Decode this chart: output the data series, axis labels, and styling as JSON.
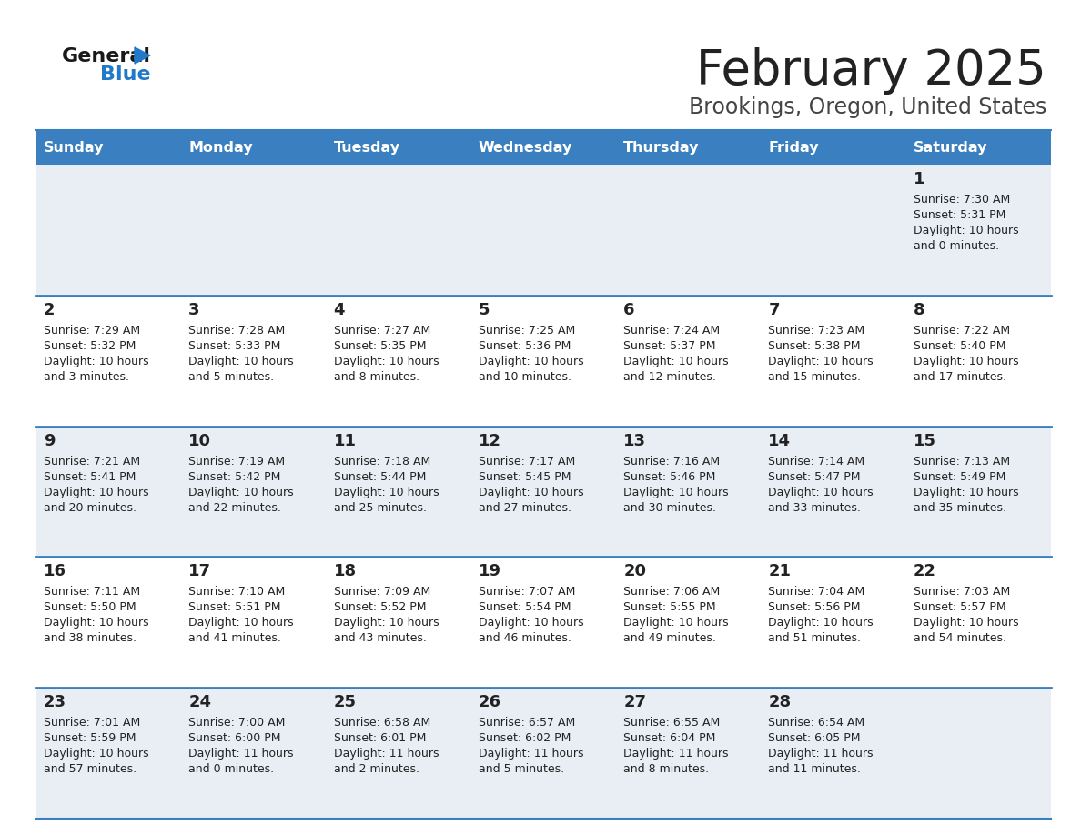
{
  "title": "February 2025",
  "subtitle": "Brookings, Oregon, United States",
  "header_color": "#3a7fbf",
  "header_text_color": "#ffffff",
  "day_names": [
    "Sunday",
    "Monday",
    "Tuesday",
    "Wednesday",
    "Thursday",
    "Friday",
    "Saturday"
  ],
  "bg_color": "#ffffff",
  "cell_bg_light": "#e8eef4",
  "cell_bg_white": "#ffffff",
  "border_color": "#3a7fbf",
  "text_color": "#222222",
  "title_color": "#222222",
  "subtitle_color": "#444444",
  "logo_general_color": "#1a1a1a",
  "logo_blue_color": "#2278c9",
  "calendar": [
    [
      null,
      null,
      null,
      null,
      null,
      null,
      {
        "day": 1,
        "sunrise": "7:30 AM",
        "sunset": "5:31 PM",
        "daylight": "10 hours\nand 0 minutes."
      }
    ],
    [
      {
        "day": 2,
        "sunrise": "7:29 AM",
        "sunset": "5:32 PM",
        "daylight": "10 hours\nand 3 minutes."
      },
      {
        "day": 3,
        "sunrise": "7:28 AM",
        "sunset": "5:33 PM",
        "daylight": "10 hours\nand 5 minutes."
      },
      {
        "day": 4,
        "sunrise": "7:27 AM",
        "sunset": "5:35 PM",
        "daylight": "10 hours\nand 8 minutes."
      },
      {
        "day": 5,
        "sunrise": "7:25 AM",
        "sunset": "5:36 PM",
        "daylight": "10 hours\nand 10 minutes."
      },
      {
        "day": 6,
        "sunrise": "7:24 AM",
        "sunset": "5:37 PM",
        "daylight": "10 hours\nand 12 minutes."
      },
      {
        "day": 7,
        "sunrise": "7:23 AM",
        "sunset": "5:38 PM",
        "daylight": "10 hours\nand 15 minutes."
      },
      {
        "day": 8,
        "sunrise": "7:22 AM",
        "sunset": "5:40 PM",
        "daylight": "10 hours\nand 17 minutes."
      }
    ],
    [
      {
        "day": 9,
        "sunrise": "7:21 AM",
        "sunset": "5:41 PM",
        "daylight": "10 hours\nand 20 minutes."
      },
      {
        "day": 10,
        "sunrise": "7:19 AM",
        "sunset": "5:42 PM",
        "daylight": "10 hours\nand 22 minutes."
      },
      {
        "day": 11,
        "sunrise": "7:18 AM",
        "sunset": "5:44 PM",
        "daylight": "10 hours\nand 25 minutes."
      },
      {
        "day": 12,
        "sunrise": "7:17 AM",
        "sunset": "5:45 PM",
        "daylight": "10 hours\nand 27 minutes."
      },
      {
        "day": 13,
        "sunrise": "7:16 AM",
        "sunset": "5:46 PM",
        "daylight": "10 hours\nand 30 minutes."
      },
      {
        "day": 14,
        "sunrise": "7:14 AM",
        "sunset": "5:47 PM",
        "daylight": "10 hours\nand 33 minutes."
      },
      {
        "day": 15,
        "sunrise": "7:13 AM",
        "sunset": "5:49 PM",
        "daylight": "10 hours\nand 35 minutes."
      }
    ],
    [
      {
        "day": 16,
        "sunrise": "7:11 AM",
        "sunset": "5:50 PM",
        "daylight": "10 hours\nand 38 minutes."
      },
      {
        "day": 17,
        "sunrise": "7:10 AM",
        "sunset": "5:51 PM",
        "daylight": "10 hours\nand 41 minutes."
      },
      {
        "day": 18,
        "sunrise": "7:09 AM",
        "sunset": "5:52 PM",
        "daylight": "10 hours\nand 43 minutes."
      },
      {
        "day": 19,
        "sunrise": "7:07 AM",
        "sunset": "5:54 PM",
        "daylight": "10 hours\nand 46 minutes."
      },
      {
        "day": 20,
        "sunrise": "7:06 AM",
        "sunset": "5:55 PM",
        "daylight": "10 hours\nand 49 minutes."
      },
      {
        "day": 21,
        "sunrise": "7:04 AM",
        "sunset": "5:56 PM",
        "daylight": "10 hours\nand 51 minutes."
      },
      {
        "day": 22,
        "sunrise": "7:03 AM",
        "sunset": "5:57 PM",
        "daylight": "10 hours\nand 54 minutes."
      }
    ],
    [
      {
        "day": 23,
        "sunrise": "7:01 AM",
        "sunset": "5:59 PM",
        "daylight": "10 hours\nand 57 minutes."
      },
      {
        "day": 24,
        "sunrise": "7:00 AM",
        "sunset": "6:00 PM",
        "daylight": "11 hours\nand 0 minutes."
      },
      {
        "day": 25,
        "sunrise": "6:58 AM",
        "sunset": "6:01 PM",
        "daylight": "11 hours\nand 2 minutes."
      },
      {
        "day": 26,
        "sunrise": "6:57 AM",
        "sunset": "6:02 PM",
        "daylight": "11 hours\nand 5 minutes."
      },
      {
        "day": 27,
        "sunrise": "6:55 AM",
        "sunset": "6:04 PM",
        "daylight": "11 hours\nand 8 minutes."
      },
      {
        "day": 28,
        "sunrise": "6:54 AM",
        "sunset": "6:05 PM",
        "daylight": "11 hours\nand 11 minutes."
      },
      null
    ]
  ]
}
